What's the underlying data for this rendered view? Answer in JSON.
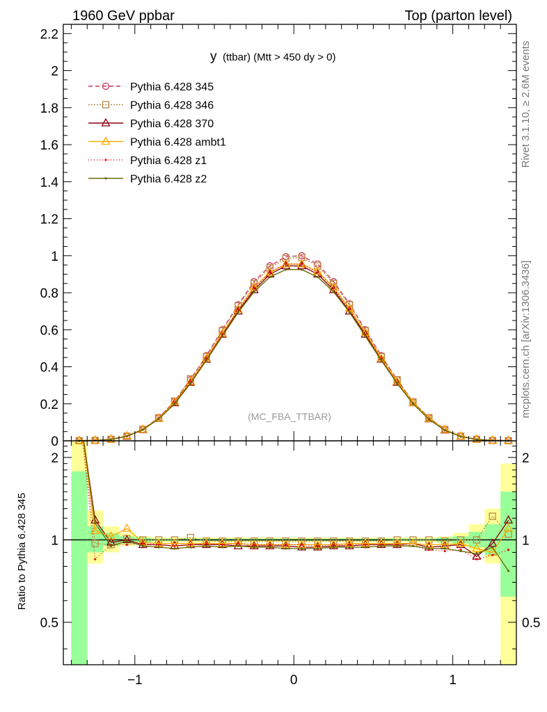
{
  "header": {
    "left": "1960 GeV ppbar",
    "right": "Top (parton level)"
  },
  "side_labels": {
    "rivet": "Rivet 3.1.10, ≥ 2.6M events",
    "mcplots": "mcplots.cern.ch [arXiv:1306.3436]"
  },
  "chart_data": [
    {
      "type": "line",
      "title": "y (ttbar) (Mtt > 450 dy > 0)",
      "title_main": "y",
      "title_rest": "(ttbar) (Mtt > 450 dy > 0)",
      "watermark": "(MC_FBA_TTBAR)",
      "xlim": [
        -1.45,
        1.4
      ],
      "ylim": [
        0,
        2.25
      ],
      "x_ticks": [
        -1,
        0,
        1
      ],
      "x_tick_labels": [
        "−1",
        "0",
        "1"
      ],
      "y_ticks": [
        0,
        0.2,
        0.4,
        0.6,
        0.8,
        1,
        1.2,
        1.4,
        1.6,
        1.8,
        2,
        2.2
      ],
      "y_tick_labels": [
        "0",
        "0.2",
        "0.4",
        "0.6",
        "0.8",
        "1",
        "1.2",
        "1.4",
        "1.6",
        "1.8",
        "2",
        "2.2"
      ],
      "legend_position": "top-left",
      "x": [
        -1.35,
        -1.25,
        -1.15,
        -1.05,
        -0.95,
        -0.85,
        -0.75,
        -0.65,
        -0.55,
        -0.45,
        -0.35,
        -0.25,
        -0.15,
        -0.05,
        0.05,
        0.15,
        0.25,
        0.35,
        0.45,
        0.55,
        0.65,
        0.75,
        0.85,
        0.95,
        1.05,
        1.15,
        1.25,
        1.35
      ],
      "series": [
        {
          "name": "Pythia 6.428 345",
          "color": "#cc3355",
          "dash": "6,4",
          "marker": "circle",
          "values": [
            0.001,
            0.002,
            0.008,
            0.025,
            0.062,
            0.125,
            0.215,
            0.33,
            0.46,
            0.6,
            0.735,
            0.86,
            0.945,
            0.995,
            1.0,
            0.955,
            0.86,
            0.74,
            0.6,
            0.46,
            0.33,
            0.21,
            0.125,
            0.062,
            0.025,
            0.008,
            0.002,
            0.001
          ]
        },
        {
          "name": "Pythia 6.428 346",
          "color": "#bb8844",
          "dash": "2,2",
          "marker": "square",
          "values": [
            0.001,
            0.002,
            0.008,
            0.025,
            0.062,
            0.125,
            0.215,
            0.335,
            0.455,
            0.595,
            0.73,
            0.85,
            0.935,
            0.985,
            0.99,
            0.945,
            0.85,
            0.735,
            0.595,
            0.455,
            0.33,
            0.21,
            0.125,
            0.061,
            0.025,
            0.008,
            0.002,
            0.001
          ]
        },
        {
          "name": "Pythia 6.428 370",
          "color": "#880011",
          "dash": "",
          "marker": "triangle",
          "values": [
            0.001,
            0.002,
            0.008,
            0.025,
            0.06,
            0.12,
            0.205,
            0.315,
            0.44,
            0.575,
            0.7,
            0.815,
            0.9,
            0.945,
            0.945,
            0.9,
            0.815,
            0.7,
            0.575,
            0.44,
            0.315,
            0.205,
            0.118,
            0.058,
            0.024,
            0.008,
            0.002,
            0.001
          ]
        },
        {
          "name": "Pythia 6.428 ambt1",
          "color": "#ffaa00",
          "dash": "",
          "marker": "triangle",
          "values": [
            0.001,
            0.002,
            0.008,
            0.027,
            0.062,
            0.12,
            0.21,
            0.32,
            0.445,
            0.58,
            0.71,
            0.83,
            0.91,
            0.955,
            0.955,
            0.915,
            0.83,
            0.715,
            0.585,
            0.445,
            0.32,
            0.205,
            0.12,
            0.06,
            0.025,
            0.008,
            0.002,
            0.001
          ]
        },
        {
          "name": "Pythia 6.428 z1",
          "color": "#dd1111",
          "dash": "1,3",
          "marker": "dot",
          "values": [
            0.001,
            0.002,
            0.007,
            0.024,
            0.06,
            0.12,
            0.205,
            0.32,
            0.445,
            0.575,
            0.71,
            0.825,
            0.91,
            0.955,
            0.955,
            0.91,
            0.825,
            0.71,
            0.575,
            0.445,
            0.315,
            0.2,
            0.115,
            0.057,
            0.023,
            0.007,
            0.002,
            0.001
          ]
        },
        {
          "name": "Pythia 6.428 z2",
          "color": "#666600",
          "dash": "",
          "marker": "dot",
          "values": [
            0.001,
            0.002,
            0.008,
            0.025,
            0.06,
            0.118,
            0.2,
            0.31,
            0.435,
            0.565,
            0.695,
            0.805,
            0.885,
            0.925,
            0.925,
            0.885,
            0.805,
            0.695,
            0.565,
            0.435,
            0.31,
            0.2,
            0.116,
            0.057,
            0.023,
            0.007,
            0.002,
            0.001
          ]
        }
      ]
    },
    {
      "type": "line",
      "ylabel": "Ratio to Pythia 6.428 345",
      "xlim": [
        -1.45,
        1.4
      ],
      "ylim": [
        0.35,
        2.3
      ],
      "y_scale": "log",
      "y_ticks": [
        0.5,
        1,
        2
      ],
      "y_tick_labels": [
        "0.5",
        "1",
        "2"
      ],
      "x_ticks": [
        -1,
        0,
        1
      ],
      "x_tick_labels": [
        "−1",
        "0",
        "1"
      ],
      "reference_line": 1,
      "uncertainty_bands": {
        "x_edges": [
          -1.4,
          -1.3,
          -1.2,
          -1.1,
          -1.0,
          -0.9,
          0.9,
          1.0,
          1.1,
          1.2,
          1.3,
          1.4
        ],
        "yellow_band": [
          [
            0.35,
            2.3
          ],
          [
            0.82,
            1.28
          ],
          [
            0.9,
            1.12
          ],
          [
            0.95,
            1.06
          ],
          [
            0.97,
            1.03
          ],
          [
            0.98,
            1.02
          ],
          [
            0.97,
            1.03
          ],
          [
            0.95,
            1.06
          ],
          [
            0.9,
            1.14
          ],
          [
            0.82,
            1.3
          ],
          [
            0.35,
            1.9
          ]
        ],
        "green_band": [
          [
            0.35,
            1.78
          ],
          [
            0.9,
            1.12
          ],
          [
            0.95,
            1.06
          ],
          [
            0.97,
            1.03
          ],
          [
            0.98,
            1.02
          ],
          [
            0.99,
            1.01
          ],
          [
            0.98,
            1.02
          ],
          [
            0.97,
            1.03
          ],
          [
            0.94,
            1.07
          ],
          [
            0.88,
            1.14
          ],
          [
            0.62,
            1.5
          ]
        ],
        "green_color": "#99ff99",
        "yellow_color": "#ffff99"
      },
      "x": [
        -1.35,
        -1.25,
        -1.15,
        -1.05,
        -0.95,
        -0.85,
        -0.75,
        -0.65,
        -0.55,
        -0.45,
        -0.35,
        -0.25,
        -0.15,
        -0.05,
        0.05,
        0.15,
        0.25,
        0.35,
        0.45,
        0.55,
        0.65,
        0.75,
        0.85,
        0.95,
        1.05,
        1.15,
        1.25,
        1.35
      ],
      "series": [
        {
          "name": "Pythia 6.428 346",
          "values": [
            3.0,
            0.97,
            0.96,
            1.01,
            1.0,
            1.0,
            1.0,
            1.02,
            0.99,
            0.99,
            0.99,
            0.99,
            0.99,
            0.99,
            0.99,
            0.99,
            0.99,
            0.99,
            0.99,
            0.99,
            1.0,
            1.0,
            1.0,
            0.99,
            1.0,
            1.0,
            1.22,
            1.05
          ]
        },
        {
          "name": "Pythia 6.428 370",
          "values": [
            3.0,
            1.18,
            0.98,
            1.0,
            0.96,
            0.96,
            0.95,
            0.96,
            0.96,
            0.96,
            0.95,
            0.95,
            0.95,
            0.95,
            0.94,
            0.94,
            0.95,
            0.95,
            0.96,
            0.96,
            0.96,
            0.97,
            0.94,
            0.95,
            0.96,
            0.87,
            0.97,
            1.18
          ]
        },
        {
          "name": "Pythia 6.428 ambt1",
          "values": [
            3.0,
            1.08,
            1.03,
            1.1,
            0.98,
            0.97,
            0.97,
            0.97,
            0.97,
            0.97,
            0.97,
            0.96,
            0.96,
            0.96,
            0.96,
            0.96,
            0.96,
            0.97,
            0.97,
            0.97,
            0.97,
            0.97,
            0.96,
            0.96,
            0.97,
            0.93,
            0.9,
            1.1
          ]
        },
        {
          "name": "Pythia 6.428 z1",
          "values": [
            3.0,
            0.85,
            0.96,
            0.96,
            0.97,
            0.96,
            0.95,
            0.96,
            0.97,
            0.96,
            0.97,
            0.96,
            0.96,
            0.96,
            0.96,
            0.95,
            0.96,
            0.96,
            0.96,
            0.96,
            0.96,
            0.95,
            0.92,
            0.91,
            0.92,
            0.85,
            0.88,
            0.92
          ]
        },
        {
          "name": "Pythia 6.428 z2",
          "values": [
            3.0,
            1.15,
            0.95,
            0.99,
            0.95,
            0.94,
            0.93,
            0.94,
            0.95,
            0.94,
            0.95,
            0.94,
            0.94,
            0.93,
            0.93,
            0.93,
            0.94,
            0.94,
            0.94,
            0.95,
            0.95,
            0.95,
            0.93,
            0.93,
            0.91,
            0.89,
            0.94,
            0.77
          ]
        }
      ]
    }
  ]
}
